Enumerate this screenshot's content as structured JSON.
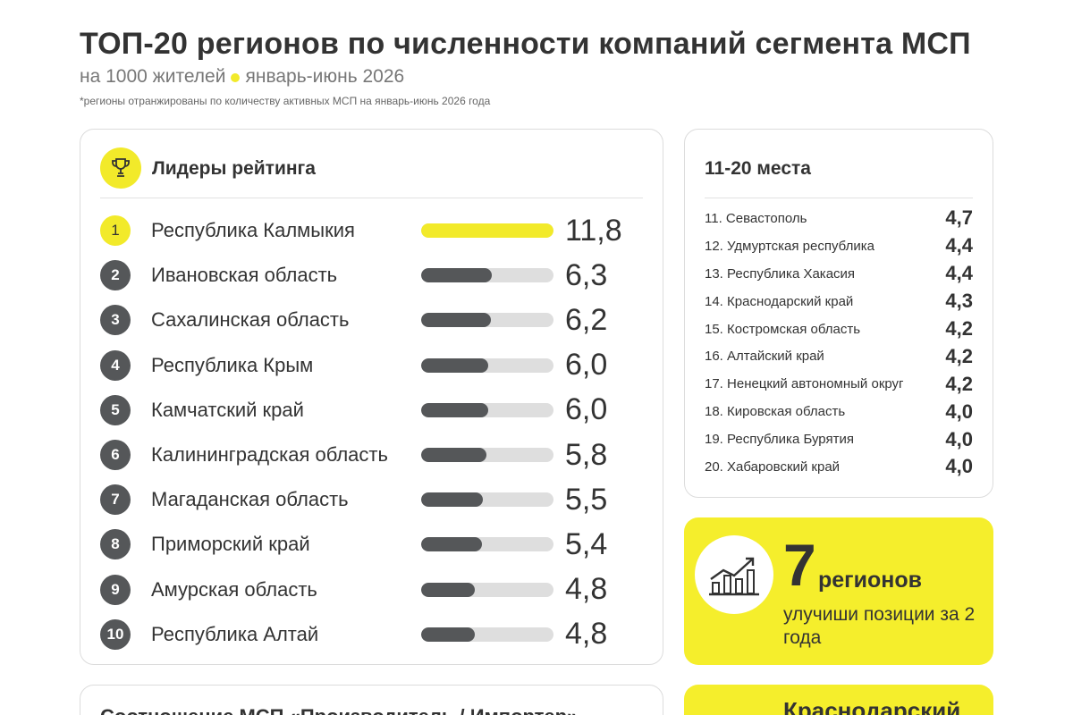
{
  "header": {
    "title": "ТОП-20 регионов по численности компаний сегмента МСП",
    "subtitle_unit": "на 1000 жителей",
    "subtitle_period": "январь-июнь 2026",
    "note": "*регионы отранжированы по количеству активных МСП на январь-июнь 2026 года"
  },
  "leaders_card": {
    "title": "Лидеры рейтинга",
    "icon": "trophy-icon"
  },
  "places_card": {
    "title": "11-20 места"
  },
  "promo": {
    "number": "7",
    "unit": "регионов",
    "text": "улучиши позиции за 2 года",
    "icon": "growth-chart-icon"
  },
  "bottom_card": {
    "title": "Соотношение МСП «Производитель / Импортер»"
  },
  "bottom_promo": {
    "text": "Краснодарский"
  },
  "colors": {
    "accent": "#f2ea2a",
    "bar": "#555759",
    "track": "#dedede",
    "text": "#333333"
  },
  "chart_data": {
    "type": "bar",
    "bar_max": 11.8,
    "leaders": [
      {
        "rank": "1",
        "region": "Республика Калмыкия",
        "value": 11.8,
        "label": "11,8"
      },
      {
        "rank": "2",
        "region": "Ивановская область",
        "value": 6.3,
        "label": "6,3"
      },
      {
        "rank": "3",
        "region": "Сахалинская область",
        "value": 6.2,
        "label": "6,2"
      },
      {
        "rank": "4",
        "region": "Республика Крым",
        "value": 6.0,
        "label": "6,0"
      },
      {
        "rank": "5",
        "region": "Камчатский край",
        "value": 6.0,
        "label": "6,0"
      },
      {
        "rank": "6",
        "region": "Калининградская область",
        "value": 5.8,
        "label": "5,8"
      },
      {
        "rank": "7",
        "region": "Магаданская область",
        "value": 5.5,
        "label": "5,5"
      },
      {
        "rank": "8",
        "region": "Приморский край",
        "value": 5.4,
        "label": "5,4"
      },
      {
        "rank": "9",
        "region": "Амурская область",
        "value": 4.8,
        "label": "4,8"
      },
      {
        "rank": "10",
        "region": "Республика Алтай",
        "value": 4.8,
        "label": "4,8"
      }
    ],
    "places_11_20": [
      {
        "region": "11. Севастополь",
        "value": 4.7,
        "label": "4,7"
      },
      {
        "region": "12. Удмуртская республика",
        "value": 4.4,
        "label": "4,4"
      },
      {
        "region": "13. Республика Хакасия",
        "value": 4.4,
        "label": "4,4"
      },
      {
        "region": "14. Краснодарский край",
        "value": 4.3,
        "label": "4,3"
      },
      {
        "region": "15. Костромская область",
        "value": 4.2,
        "label": "4,2"
      },
      {
        "region": "16. Алтайский край",
        "value": 4.2,
        "label": "4,2"
      },
      {
        "region": "17. Ненецкий автономный округ",
        "value": 4.2,
        "label": "4,2"
      },
      {
        "region": "18. Кировская область",
        "value": 4.0,
        "label": "4,0"
      },
      {
        "region": "19. Республика Бурятия",
        "value": 4.0,
        "label": "4,0"
      },
      {
        "region": "20. Хабаровский край",
        "value": 4.0,
        "label": "4,0"
      }
    ]
  }
}
